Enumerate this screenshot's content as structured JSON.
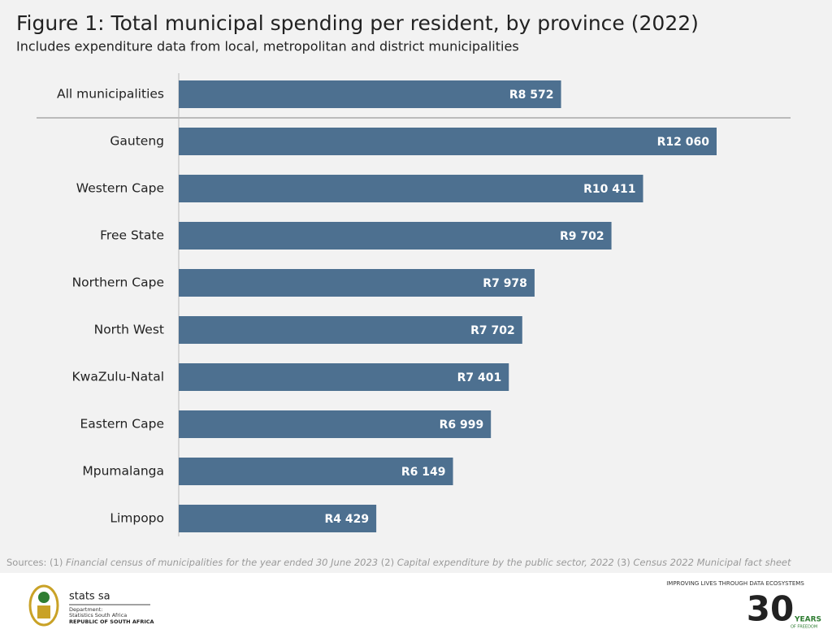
{
  "chart_data": {
    "type": "bar",
    "orientation": "horizontal",
    "title": "Figure 1: Total municipal spending per resident, by province (2022)",
    "subtitle": "Includes expenditure data from local, metropolitan and district municipalities",
    "categories": [
      "All municipalities",
      "Gauteng",
      "Western Cape",
      "Free State",
      "Northern Cape",
      "North West",
      "KwaZulu-Natal",
      "Eastern Cape",
      "Mpumalanga",
      "Limpopo"
    ],
    "values": [
      8572,
      12060,
      10411,
      9702,
      7978,
      7702,
      7401,
      6999,
      6149,
      4429
    ],
    "value_labels": [
      "R8 572",
      "R12 060",
      "R10 411",
      "R9 702",
      "R7 978",
      "R7 702",
      "R7 401",
      "R6 999",
      "R6 149",
      "R4 429"
    ],
    "color": "#4d7090",
    "sources_label": "Sources:",
    "sources": [
      {
        "number": "(1)",
        "title": "Financial census of municipalities for the year ended 30 June 2023"
      },
      {
        "number": "(2)",
        "title": "Capital expenditure by the public sector, 2022"
      },
      {
        "number": "(3)",
        "title": "Census 2022 Municipal fact sheet"
      }
    ]
  },
  "footer": {
    "brand": "stats sa",
    "department": "Department:",
    "agency": "Statistics South Africa",
    "country": "REPUBLIC OF SOUTH AFRICA",
    "slogan": "IMPROVING LIVES THROUGH DATA ECOSYSTEMS",
    "anniversary": "30",
    "years": "YEARS",
    "freedom": "OF FREEDOM"
  }
}
